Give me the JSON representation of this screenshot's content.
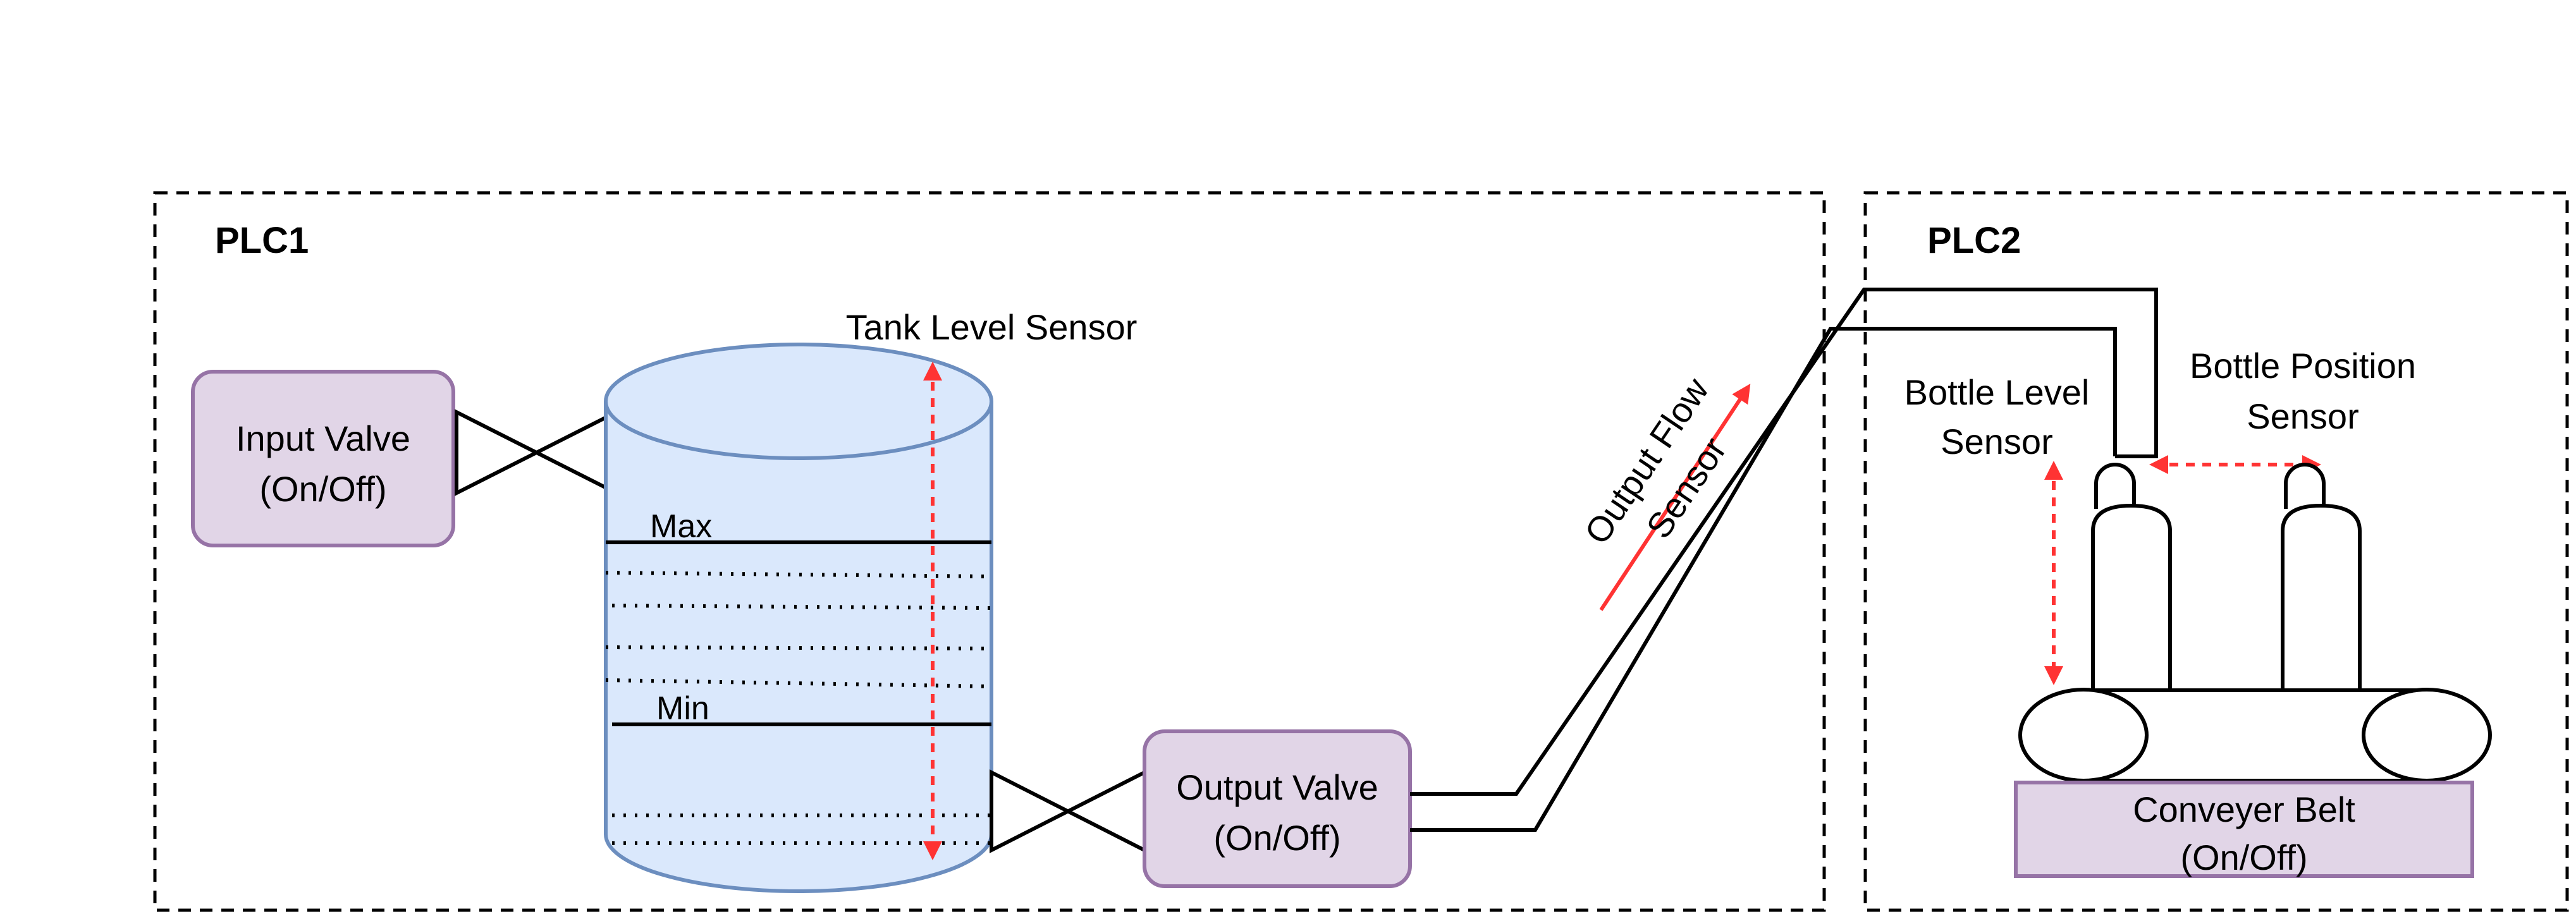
{
  "plc1": {
    "title": "PLC1"
  },
  "plc2": {
    "title": "PLC2"
  },
  "tank": {
    "sensor_label": "Tank Level Sensor",
    "max_label": "Max",
    "min_label": "Min"
  },
  "input_valve": {
    "line1": "Input Valve",
    "line2": "(On/Off)"
  },
  "output_valve": {
    "line1": "Output Valve",
    "line2": "(On/Off)"
  },
  "output_flow_sensor": {
    "line1": "Output Flow",
    "line2": "Sensor"
  },
  "bottle_level_sensor": {
    "line1": "Bottle Level",
    "line2": "Sensor"
  },
  "bottle_position_sensor": {
    "line1": "Bottle Position",
    "line2": "Sensor"
  },
  "conveyor_belt": {
    "line1": "Conveyer Belt",
    "line2": "(On/Off)"
  },
  "colors": {
    "sensor_red": "#ff3333",
    "tank_fill": "#dae8fc",
    "tank_stroke": "#6c8ebf",
    "box_fill": "#e1d5e7",
    "box_stroke": "#9673a6"
  }
}
